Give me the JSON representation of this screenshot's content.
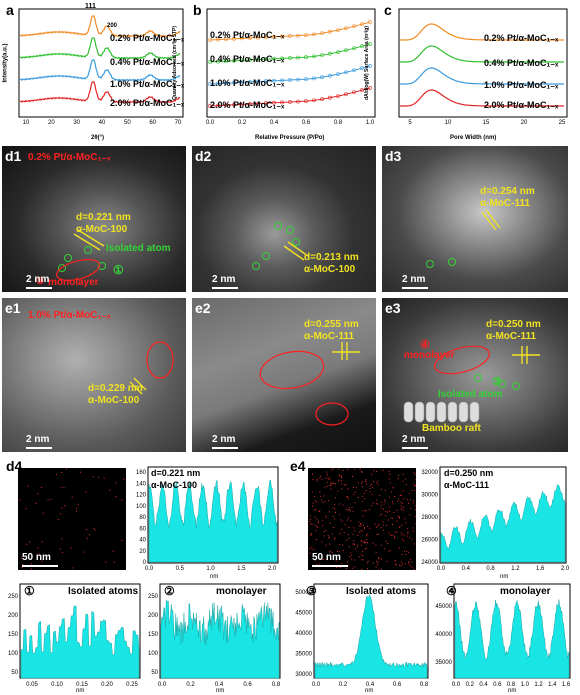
{
  "panels": {
    "a": {
      "letter": "a",
      "ylabel": "Intensity(a.u.)",
      "xlabel": "2θ(°)",
      "xticks": [
        "10",
        "20",
        "30",
        "40",
        "50",
        "60",
        "70"
      ],
      "peak1": "111",
      "peak2": "200",
      "series": [
        {
          "name": "0.2% Pt/α-MoC₁₋ₓ",
          "color": "#f08a24"
        },
        {
          "name": "0.4% Pt/α-MoC₁₋ₓ",
          "color": "#2fbf2f"
        },
        {
          "name": "1.0% Pt/α-MoC₁₋ₓ",
          "color": "#3a9bdc"
        },
        {
          "name": "2.0% Pt/α-MoC₁₋ₓ",
          "color": "#e02424"
        }
      ]
    },
    "b": {
      "letter": "b",
      "ylabel": "Quantity Adsorbed (cm³/g STP)",
      "xlabel": "Relative Pressure (P/Po)",
      "xticks": [
        "0.0",
        "0.2",
        "0.4",
        "0.6",
        "0.8",
        "1.0"
      ],
      "series": [
        {
          "name": "0.2% Pt/α-MoC₁₋ₓ",
          "color": "#f08a24"
        },
        {
          "name": "0.4% Pt/α-MoC₁₋ₓ",
          "color": "#2fbf2f"
        },
        {
          "name": "1.0% Pt/α-MoC₁₋ₓ",
          "color": "#3a9bdc"
        },
        {
          "name": "2.0% Pt/α-MoC₁₋ₓ",
          "color": "#e02424"
        }
      ]
    },
    "c": {
      "letter": "c",
      "ylabel": "dA/dlog(W) Surface Area (m²/g)",
      "xlabel": "Pore Width (nm)",
      "xticks": [
        "5",
        "10",
        "15",
        "20",
        "25"
      ],
      "series": [
        {
          "name": "0.2% Pt/α-MoC₁₋ₓ",
          "color": "#f08a24"
        },
        {
          "name": "0.4% Pt/α-MoC₁₋ₓ",
          "color": "#2fbf2f"
        },
        {
          "name": "1.0% Pt/α-MoC₁₋ₓ",
          "color": "#3a9bdc"
        },
        {
          "name": "2.0% Pt/α-MoC₁₋ₓ",
          "color": "#e02424"
        }
      ]
    },
    "d1": {
      "letter": "d1",
      "title": "0.2% Pt/α-MoC₁₋ₓ",
      "d": "d=0.221 nm",
      "plane": "α-MoC-100",
      "iso": "Isolated atom",
      "mono": "monolayer",
      "scale": "2 nm",
      "n1": "①",
      "n2": "②"
    },
    "d2": {
      "letter": "d2",
      "d": "d=0.213 nm",
      "plane": "α-MoC-100",
      "scale": "2 nm"
    },
    "d3": {
      "letter": "d3",
      "d": "d=0.254 nm",
      "plane": "α-MoC-111",
      "scale": "2 nm"
    },
    "e1": {
      "letter": "e1",
      "title": "1.0% Pt/α-MoC₁₋ₓ",
      "d": "d=0.229 nm",
      "plane": "α-MoC-100",
      "scale": "2 nm"
    },
    "e2": {
      "letter": "e2",
      "d": "d=0.255 nm",
      "plane": "α-MoC-111",
      "scale": "2 nm"
    },
    "e3": {
      "letter": "e3",
      "d": "d=0.250 nm",
      "plane": "α-MoC-111",
      "iso": "Isolated atom",
      "mono": "monolayer",
      "raft": "Bamboo raft",
      "scale": "2 nm",
      "n3": "③",
      "n4": "④"
    },
    "d4": {
      "letter": "d4",
      "scale": "50 nm",
      "d": "d=0.221 nm",
      "plane": "α-MoC-100",
      "yticks": [
        "0",
        "20",
        "40",
        "60",
        "80",
        "100",
        "120",
        "140",
        "160"
      ],
      "xticks": [
        "0.0",
        "0.5",
        "1.0",
        "1.5",
        "2.0"
      ],
      "xunit": "nm"
    },
    "e4": {
      "letter": "e4",
      "scale": "50 nm",
      "d": "d=0.250 nm",
      "plane": "α-MoC-111",
      "yticks": [
        "24000",
        "26000",
        "28000",
        "30000",
        "32000"
      ],
      "xticks": [
        "0.0",
        "0.4",
        "0.8",
        "1.2",
        "1.6",
        "2.0"
      ],
      "xunit": "nm"
    },
    "p1": {
      "num": "①",
      "label": "Isolated atoms",
      "yticks": [
        "50",
        "100",
        "150",
        "200",
        "250"
      ],
      "xticks": [
        "0.05",
        "0.10",
        "0.15",
        "0.20",
        "0.25"
      ],
      "xunit": "nm"
    },
    "p2": {
      "num": "②",
      "label": "monolayer",
      "yticks": [
        "50",
        "100",
        "150",
        "200",
        "250"
      ],
      "xticks": [
        "0.0",
        "0.2",
        "0.4",
        "0.6",
        "0.8"
      ],
      "xunit": "nm"
    },
    "p3": {
      "num": "③",
      "label": "Isolated atoms",
      "yticks": [
        "30000",
        "35000",
        "40000",
        "45000",
        "50000"
      ],
      "xticks": [
        "0.0",
        "0.2",
        "0.4",
        "0.6",
        "0.8"
      ],
      "xunit": "nm"
    },
    "p4": {
      "num": "④",
      "label": "monolayer",
      "yticks": [
        "35000",
        "40000",
        "45000"
      ],
      "xticks": [
        "0.0",
        "0.2",
        "0.4",
        "0.6",
        "0.8",
        "1.0",
        "1.2",
        "1.4",
        "1.6"
      ],
      "xunit": "nm"
    }
  }
}
